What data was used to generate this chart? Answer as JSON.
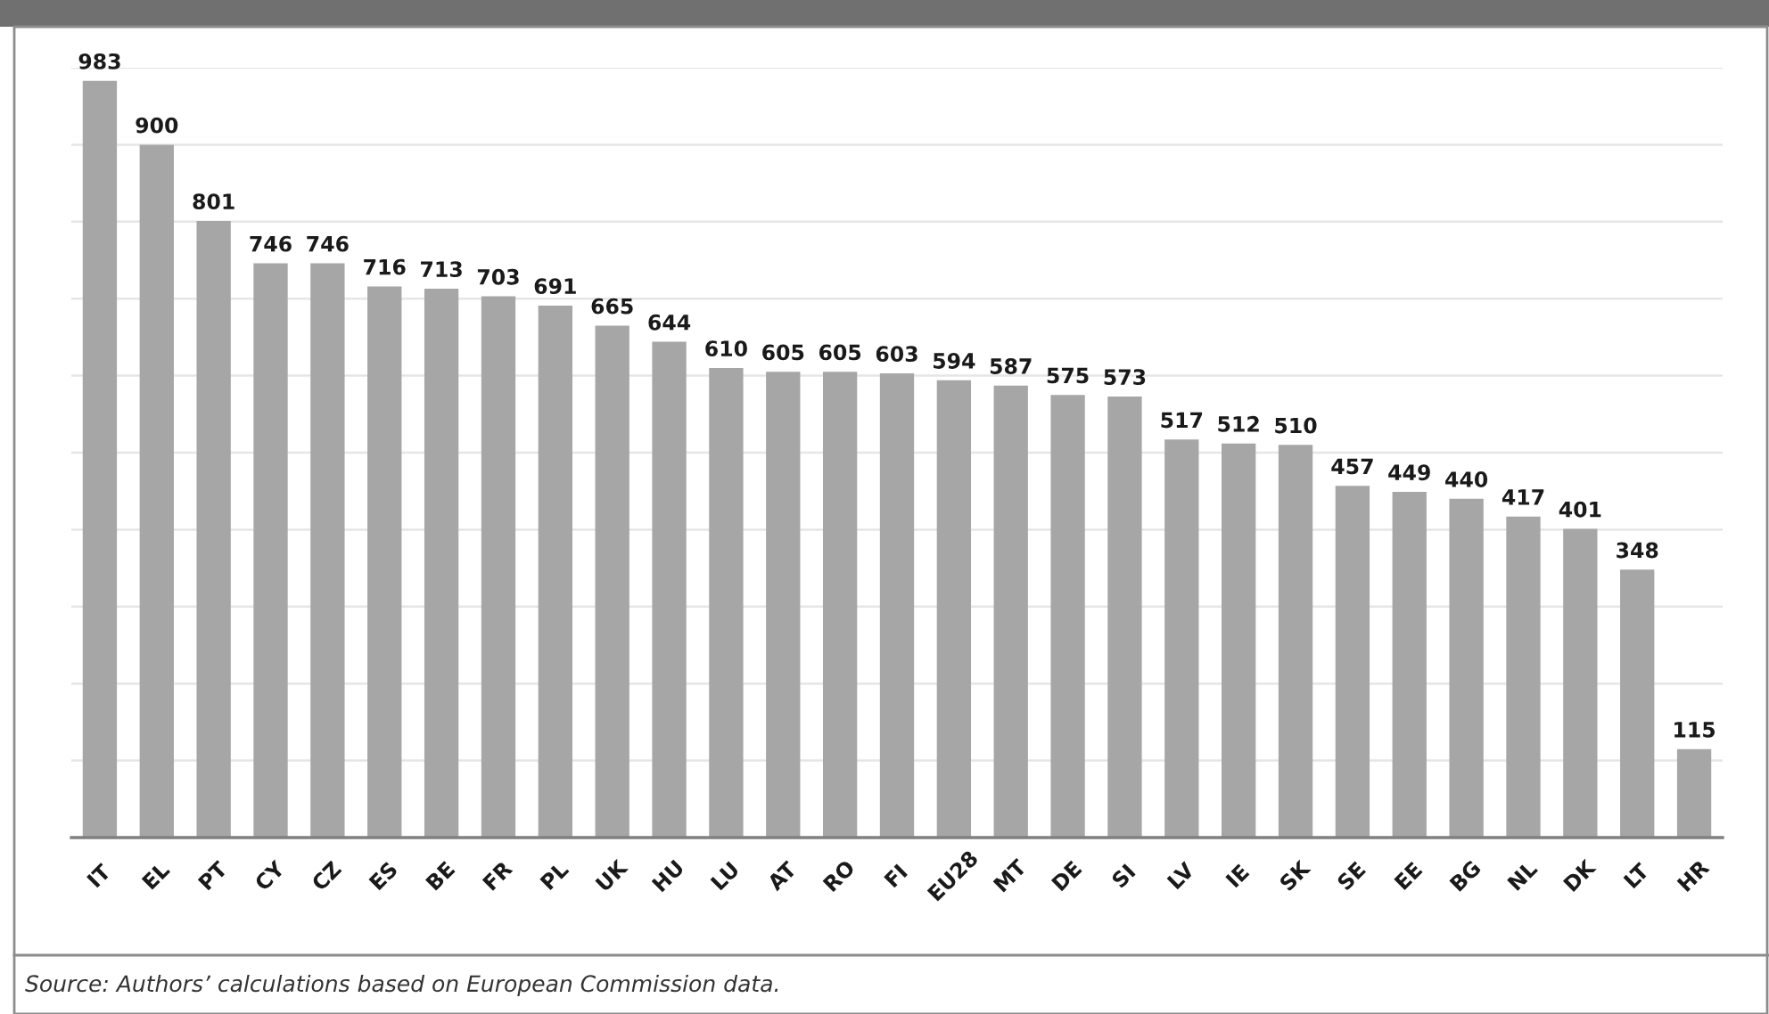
{
  "chart_data": {
    "type": "bar",
    "categories": [
      "IT",
      "EL",
      "PT",
      "CY",
      "CZ",
      "ES",
      "BE",
      "FR",
      "PL",
      "UK",
      "HU",
      "LU",
      "AT",
      "RO",
      "FI",
      "EU28",
      "MT",
      "DE",
      "SI",
      "LV",
      "IE",
      "SK",
      "SE",
      "EE",
      "BG",
      "NL",
      "DK",
      "LT",
      "HR"
    ],
    "values": [
      983,
      900,
      801,
      746,
      746,
      716,
      713,
      703,
      691,
      665,
      644,
      610,
      605,
      605,
      603,
      594,
      587,
      575,
      573,
      517,
      512,
      510,
      457,
      449,
      440,
      417,
      401,
      348,
      115
    ],
    "color": "#a6a6a6",
    "data_labels": true,
    "ylim": [
      0,
      1000
    ],
    "yticks": [
      {
        "value": 0,
        "label": null
      },
      {
        "value": 100,
        "label": null
      },
      {
        "value": 200,
        "label": null
      },
      {
        "value": 300,
        "label": null
      },
      {
        "value": 400,
        "label": null
      },
      {
        "value": 500,
        "label": null
      },
      {
        "value": 600,
        "label": null
      },
      {
        "value": 700,
        "label": null
      },
      {
        "value": 800,
        "label": null
      },
      {
        "value": 900,
        "label": null
      },
      {
        "value": 1000,
        "label": null
      }
    ],
    "grid": "y",
    "tick_labels": "x",
    "annotations": [
      "Source: Authors’ calculations based on European Commission data."
    ]
  }
}
